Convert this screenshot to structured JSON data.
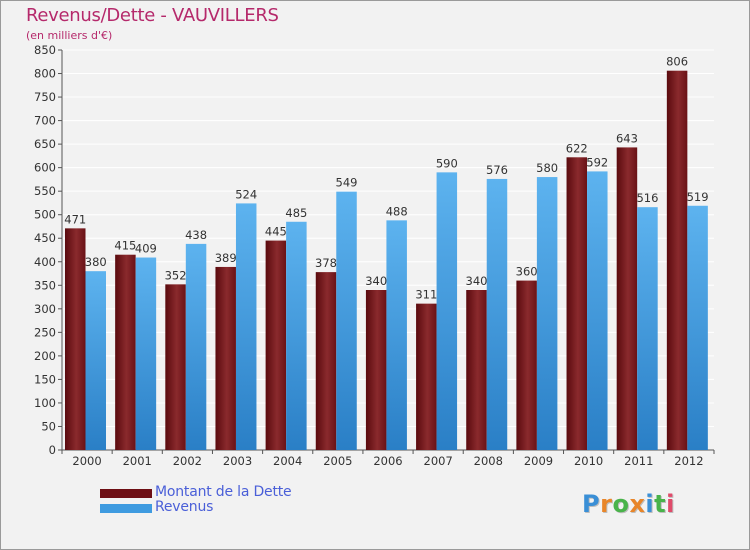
{
  "title": "Revenus/Dette - VAUVILLERS",
  "subtitle": "(en milliers d'€)",
  "logo": {
    "text": "Proxiti",
    "colors": [
      "#3a8fd6",
      "#e8862a",
      "#49b34a",
      "#e8862a",
      "#3a8fd6",
      "#49b34a",
      "#e04b6a"
    ]
  },
  "colors": {
    "dette": "#6e0f14",
    "dette_light": "#9a3a3c",
    "revenus": "#2e86d0",
    "revenus_light": "#5db3ef",
    "grid": "#ffffff",
    "title": "#b5296b",
    "legend_text": "#4a5fd8"
  },
  "chart_data": {
    "type": "bar",
    "title": "Revenus/Dette - VAUVILLERS",
    "subtitle": "(en milliers d'€)",
    "xlabel": "",
    "ylabel": "",
    "categories": [
      "2000",
      "2001",
      "2002",
      "2003",
      "2004",
      "2005",
      "2006",
      "2007",
      "2008",
      "2009",
      "2010",
      "2011",
      "2012"
    ],
    "series": [
      {
        "name": "Montant de la Dette",
        "values": [
          471,
          415,
          352,
          389,
          445,
          378,
          340,
          311,
          340,
          360,
          622,
          643,
          806
        ]
      },
      {
        "name": "Revenus",
        "values": [
          380,
          409,
          438,
          524,
          485,
          549,
          488,
          590,
          576,
          580,
          592,
          516,
          519
        ]
      }
    ],
    "ylim": [
      0,
      850
    ],
    "yticks": [
      0,
      50,
      100,
      150,
      200,
      250,
      300,
      350,
      400,
      450,
      500,
      550,
      600,
      650,
      700,
      750,
      800,
      850
    ],
    "grid": true,
    "legend_position": "bottom-left"
  }
}
